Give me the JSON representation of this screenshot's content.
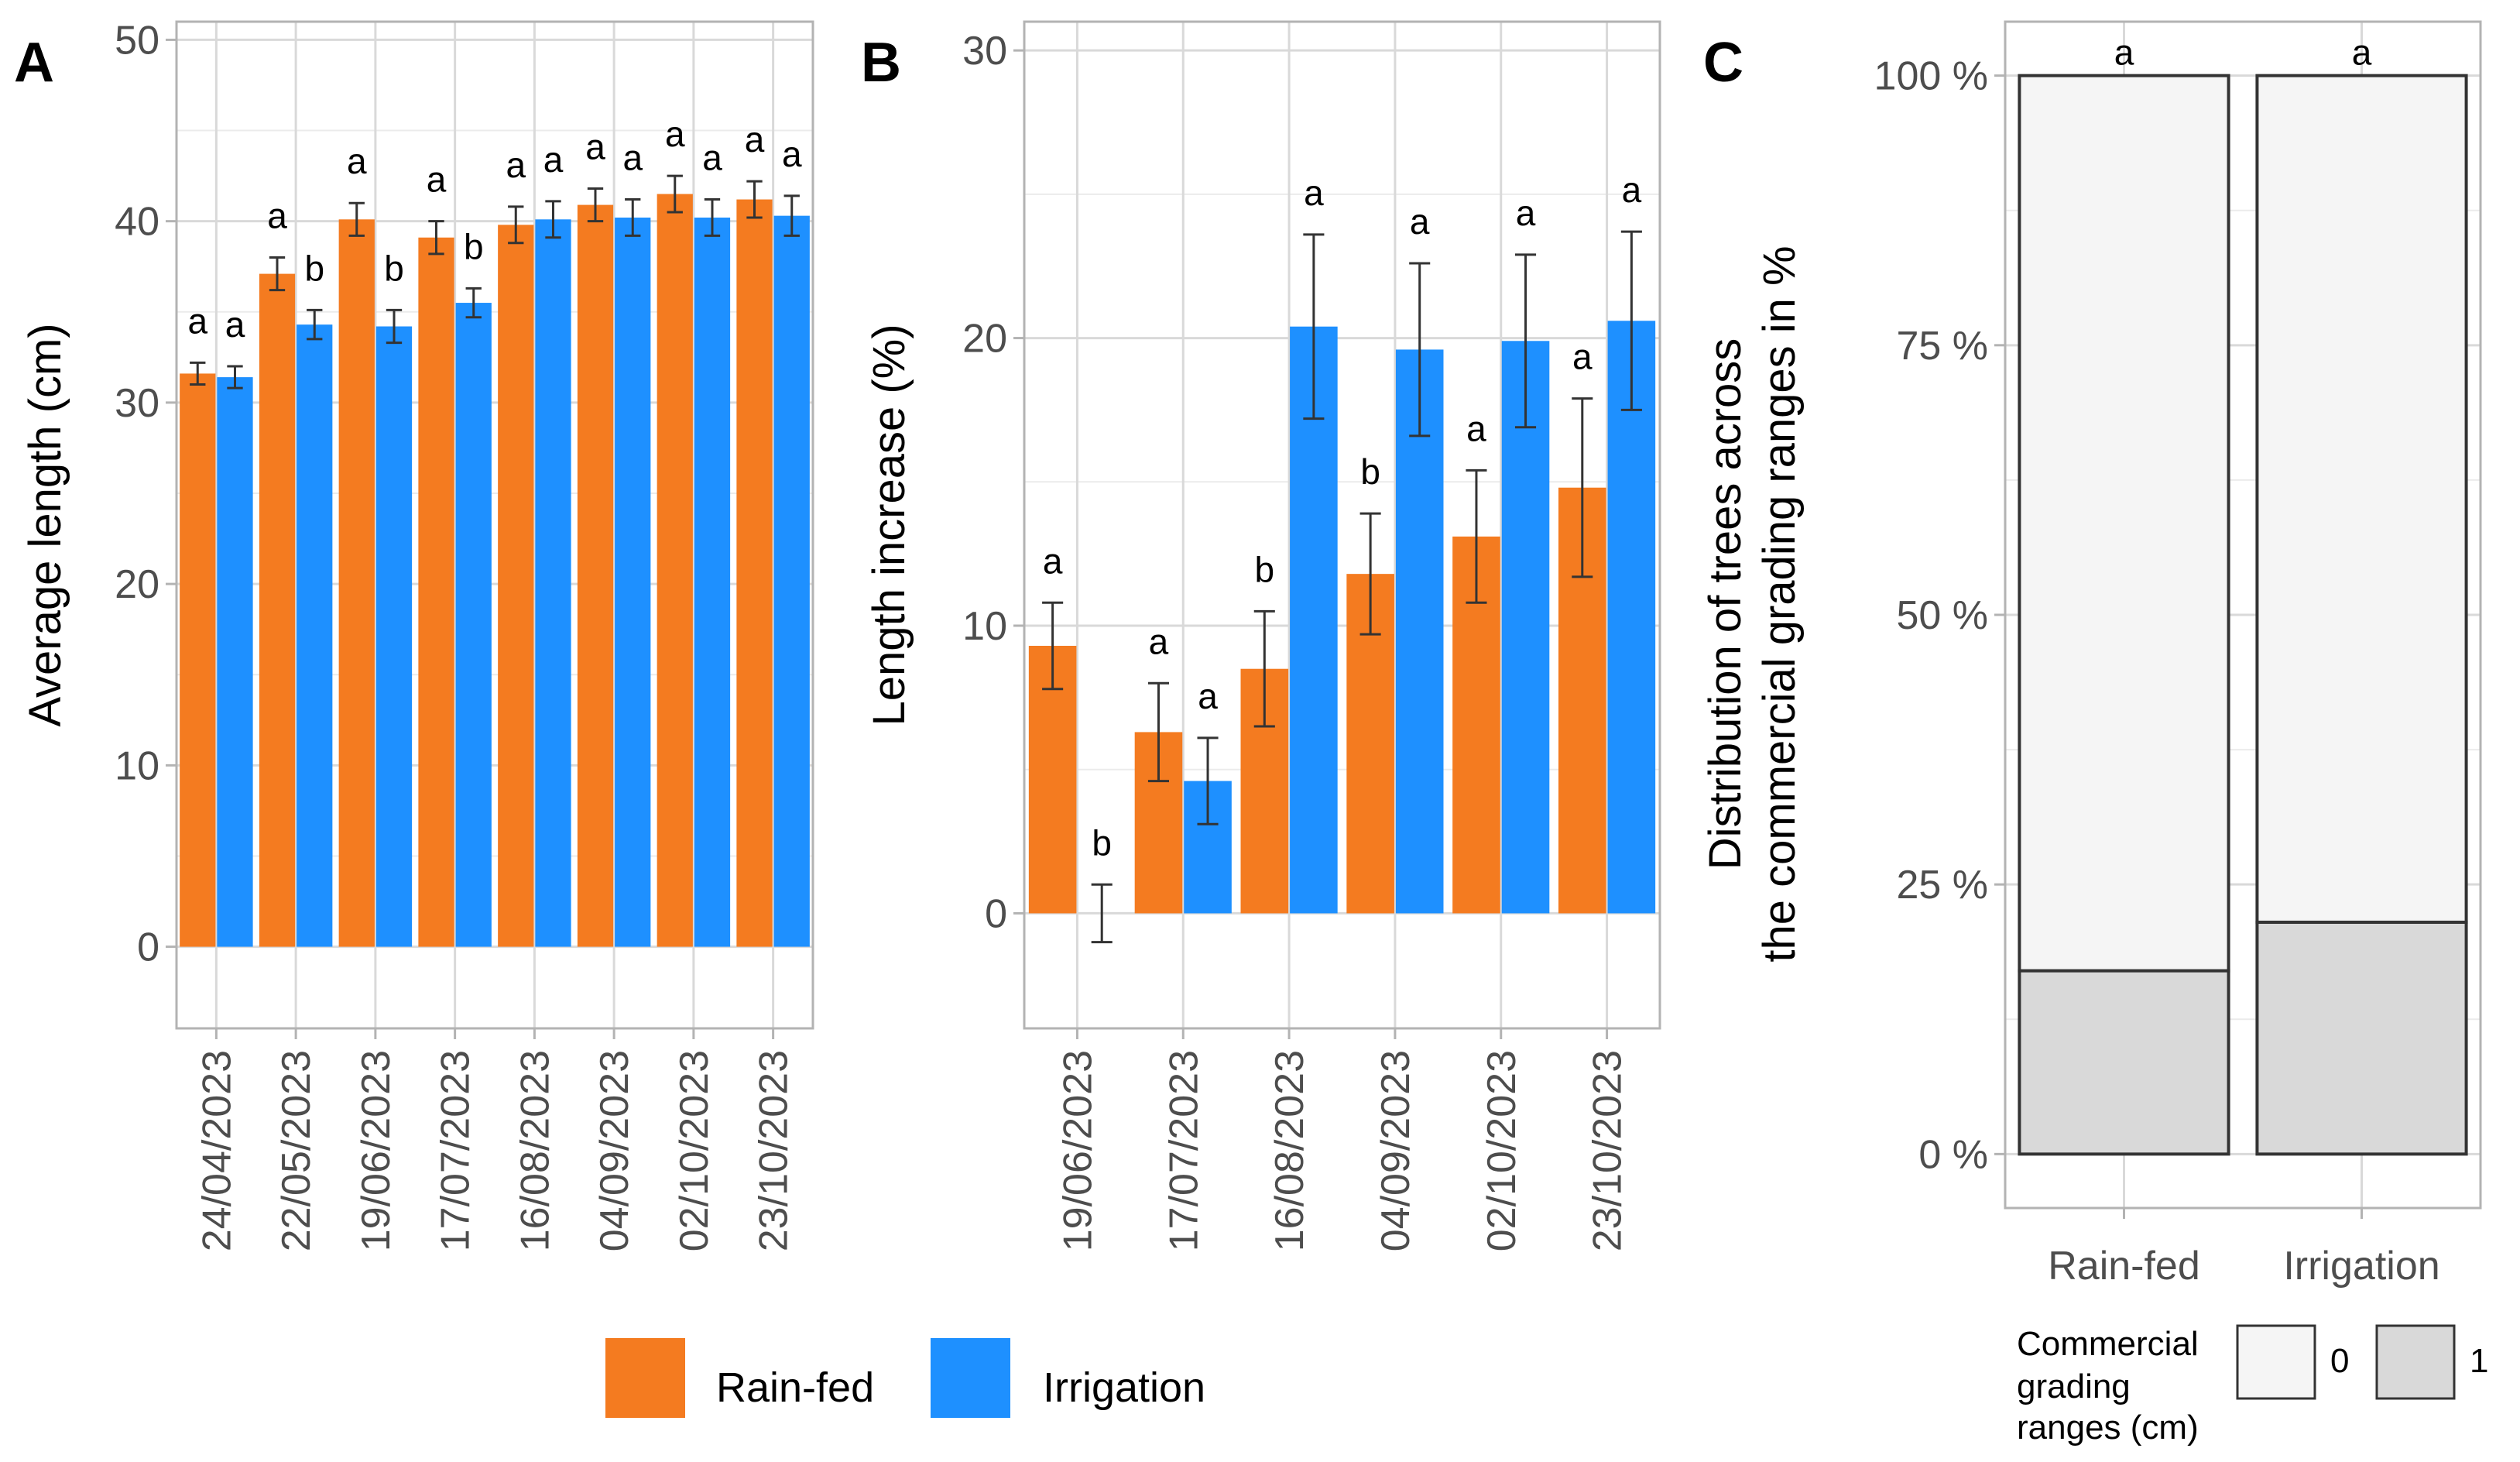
{
  "colors": {
    "rainfed": "#f47b20",
    "irrigation": "#1e90ff",
    "grid_major": "#d9d9d9",
    "grid_minor": "#ebebeb",
    "frame": "#b3b3b3",
    "error": "#333333",
    "grade0": "#f5f5f5",
    "grade1": "#d9d9d9"
  },
  "chart_data": [
    {
      "panel": "A",
      "type": "bar",
      "ylabel": "Average length (cm)",
      "ylim": [
        -4.5,
        51
      ],
      "yticks": [
        0,
        10,
        20,
        30,
        40,
        50
      ],
      "categories": [
        "24/04/2023",
        "22/05/2023",
        "19/06/2023",
        "17/07/2023",
        "16/08/2023",
        "04/09/2023",
        "02/10/2023",
        "23/10/2023"
      ],
      "series": [
        {
          "name": "Rain-fed",
          "values": [
            31.6,
            37.1,
            40.1,
            39.1,
            39.8,
            40.9,
            41.5,
            41.2
          ],
          "errors": [
            0.6,
            0.9,
            0.9,
            0.9,
            1.0,
            0.9,
            1.0,
            1.0
          ],
          "letters": [
            "a",
            "a",
            "a",
            "a",
            "a",
            "a",
            "a",
            "a"
          ]
        },
        {
          "name": "Irrigation",
          "values": [
            31.4,
            34.3,
            34.2,
            35.5,
            40.1,
            40.2,
            40.2,
            40.3
          ],
          "errors": [
            0.6,
            0.8,
            0.9,
            0.8,
            1.0,
            1.0,
            1.0,
            1.1
          ],
          "letters": [
            "a",
            "b",
            "b",
            "b",
            "a",
            "a",
            "a",
            "a"
          ]
        }
      ]
    },
    {
      "panel": "B",
      "type": "bar",
      "ylabel": "Length increase (%)",
      "ylim": [
        -4,
        31
      ],
      "yticks": [
        0,
        10,
        20,
        30
      ],
      "categories": [
        "19/06/2023",
        "17/07/2023",
        "16/08/2023",
        "04/09/2023",
        "02/10/2023",
        "23/10/2023"
      ],
      "series": [
        {
          "name": "Rain-fed",
          "values": [
            9.3,
            6.3,
            8.5,
            11.8,
            13.1,
            14.8
          ],
          "errors": [
            1.5,
            1.7,
            2.0,
            2.1,
            2.3,
            3.1
          ],
          "letters": [
            "a",
            "a",
            "b",
            "b",
            "a",
            "a"
          ]
        },
        {
          "name": "Irrigation",
          "values": [
            0.0,
            4.6,
            20.4,
            19.6,
            19.9,
            20.6
          ],
          "errors": [
            1.0,
            1.5,
            3.2,
            3.0,
            3.0,
            3.1
          ],
          "letters": [
            "b",
            "a",
            "a",
            "a",
            "a",
            "a"
          ]
        }
      ]
    },
    {
      "panel": "C",
      "type": "bar",
      "stacked": true,
      "ylabel_line1": "Distribution of trees across",
      "ylabel_line2": "the commercial grading ranges in %",
      "ylim": [
        -5,
        105
      ],
      "yticks": [
        0,
        25,
        50,
        75,
        100
      ],
      "ytick_labels": [
        "0 %",
        "25 %",
        "50 %",
        "75 %",
        "100 %"
      ],
      "categories": [
        "Rain-fed",
        "Irrigation"
      ],
      "letters": [
        "a",
        "a"
      ],
      "series": [
        {
          "name": "1",
          "values": [
            17,
            21.5
          ]
        },
        {
          "name": "0",
          "values": [
            83,
            78.5
          ]
        }
      ]
    }
  ],
  "legend": {
    "items": [
      "Rain-fed",
      "Irrigation"
    ]
  },
  "legend_c": {
    "title_lines": [
      "Commercial",
      "grading",
      "ranges (cm)"
    ],
    "items": [
      "0",
      "1"
    ]
  }
}
